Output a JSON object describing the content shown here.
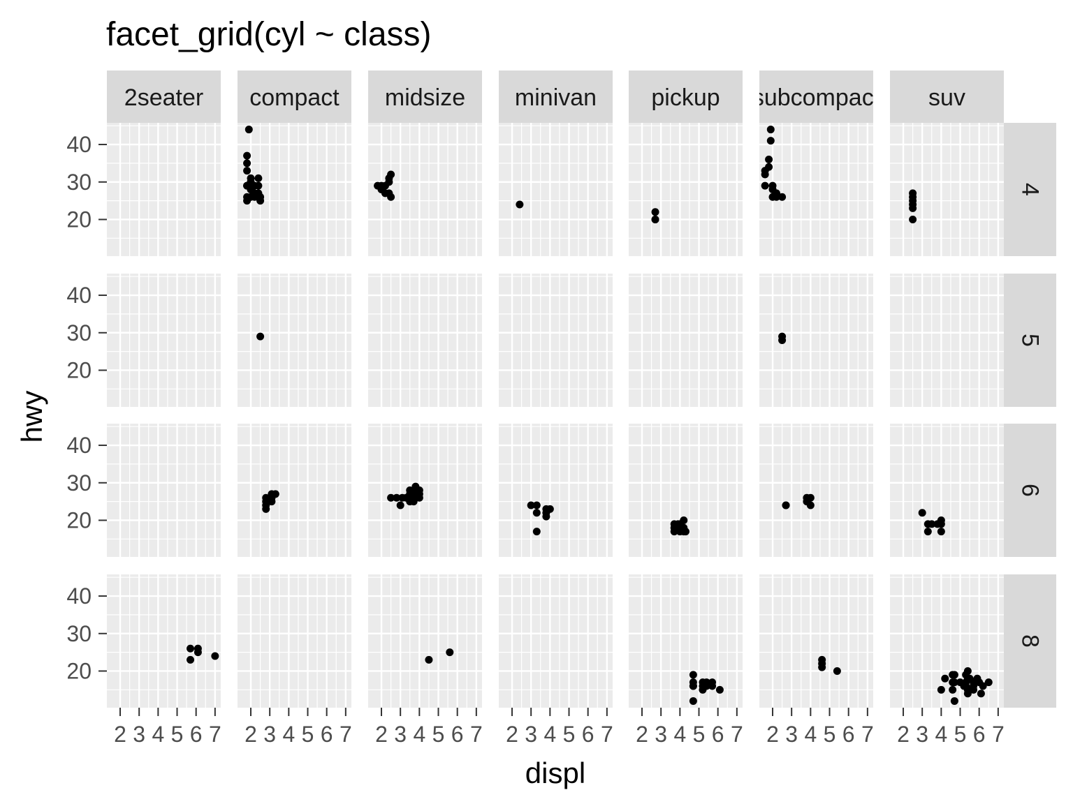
{
  "chart_data": {
    "type": "scatter",
    "title": "facet_grid(cyl ~ class)",
    "xlabel": "displ",
    "ylabel": "hwy",
    "xlim": [
      1.6,
      7.0
    ],
    "ylim": [
      12,
      44
    ],
    "x_ticks": [
      2,
      3,
      4,
      5,
      6,
      7
    ],
    "y_ticks": [
      20,
      30,
      40
    ],
    "grid": true,
    "col_facets": [
      "2seater",
      "compact",
      "midsize",
      "minivan",
      "pickup",
      "subcompact",
      "suv"
    ],
    "row_facets": [
      "4",
      "5",
      "6",
      "8"
    ],
    "colors": {
      "panel_bg": "#ebebeb",
      "grid": "#ffffff",
      "strip_bg": "#d9d9d9",
      "point": "#000000",
      "tick": "#333333"
    },
    "panels": [
      {
        "row": "4",
        "col": "compact",
        "points": [
          [
            1.8,
            29
          ],
          [
            1.8,
            29
          ],
          [
            2.0,
            31
          ],
          [
            2.0,
            30
          ],
          [
            1.8,
            26
          ],
          [
            1.8,
            25
          ],
          [
            2.0,
            28
          ],
          [
            2.0,
            28
          ],
          [
            1.8,
            33
          ],
          [
            1.8,
            35
          ],
          [
            1.8,
            37
          ],
          [
            1.9,
            44
          ],
          [
            2.0,
            29
          ],
          [
            2.0,
            26
          ],
          [
            2.0,
            29
          ],
          [
            2.2,
            27
          ],
          [
            2.2,
            29
          ],
          [
            2.4,
            31
          ],
          [
            2.4,
            27
          ],
          [
            2.5,
            25
          ],
          [
            2.5,
            26
          ],
          [
            2.2,
            26
          ],
          [
            2.4,
            29
          ],
          [
            1.9,
            29
          ],
          [
            2.0,
            30
          ]
        ]
      },
      {
        "row": "4",
        "col": "midsize",
        "points": [
          [
            1.8,
            29
          ],
          [
            2.0,
            29
          ],
          [
            2.0,
            28
          ],
          [
            2.4,
            30
          ],
          [
            2.4,
            31
          ],
          [
            2.5,
            32
          ],
          [
            2.2,
            27
          ],
          [
            2.5,
            26
          ],
          [
            2.4,
            27
          ],
          [
            2.2,
            29
          ]
        ]
      },
      {
        "row": "4",
        "col": "minivan",
        "points": [
          [
            2.4,
            24
          ]
        ]
      },
      {
        "row": "4",
        "col": "pickup",
        "points": [
          [
            2.7,
            20
          ],
          [
            2.7,
            22
          ],
          [
            2.7,
            20
          ]
        ]
      },
      {
        "row": "4",
        "col": "subcompact",
        "points": [
          [
            1.6,
            29
          ],
          [
            1.6,
            32
          ],
          [
            1.6,
            33
          ],
          [
            1.8,
            34
          ],
          [
            1.8,
            36
          ],
          [
            1.9,
            44
          ],
          [
            1.9,
            41
          ],
          [
            2.0,
            29
          ],
          [
            2.0,
            26
          ],
          [
            2.2,
            26
          ],
          [
            2.5,
            26
          ],
          [
            2.0,
            28
          ],
          [
            2.2,
            27
          ]
        ]
      },
      {
        "row": "4",
        "col": "suv",
        "points": [
          [
            2.5,
            20
          ],
          [
            2.5,
            23
          ],
          [
            2.5,
            24
          ],
          [
            2.5,
            25
          ],
          [
            2.5,
            26
          ],
          [
            2.5,
            27
          ]
        ]
      },
      {
        "row": "5",
        "col": "compact",
        "points": [
          [
            2.5,
            29
          ]
        ]
      },
      {
        "row": "5",
        "col": "subcompact",
        "points": [
          [
            2.5,
            28
          ],
          [
            2.5,
            29
          ]
        ]
      },
      {
        "row": "6",
        "col": "compact",
        "points": [
          [
            2.8,
            23
          ],
          [
            2.8,
            24
          ],
          [
            2.8,
            25
          ],
          [
            2.8,
            26
          ],
          [
            3.1,
            25
          ],
          [
            3.1,
            26
          ],
          [
            3.3,
            27
          ],
          [
            3.1,
            27
          ]
        ]
      },
      {
        "row": "6",
        "col": "midsize",
        "points": [
          [
            2.5,
            26
          ],
          [
            2.8,
            26
          ],
          [
            3.0,
            24
          ],
          [
            3.1,
            26
          ],
          [
            3.3,
            26
          ],
          [
            3.5,
            25
          ],
          [
            3.5,
            26
          ],
          [
            3.5,
            27
          ],
          [
            3.5,
            28
          ],
          [
            3.8,
            26
          ],
          [
            3.8,
            27
          ],
          [
            3.8,
            28
          ],
          [
            3.8,
            29
          ],
          [
            4.0,
            26
          ],
          [
            4.0,
            27
          ],
          [
            4.0,
            28
          ],
          [
            3.7,
            25
          ]
        ]
      },
      {
        "row": "6",
        "col": "minivan",
        "points": [
          [
            3.0,
            24
          ],
          [
            3.3,
            24
          ],
          [
            3.3,
            22
          ],
          [
            3.3,
            17
          ],
          [
            3.8,
            23
          ],
          [
            3.8,
            22
          ],
          [
            3.8,
            21
          ],
          [
            4.0,
            23
          ]
        ]
      },
      {
        "row": "6",
        "col": "pickup",
        "points": [
          [
            3.7,
            17
          ],
          [
            3.7,
            18
          ],
          [
            3.7,
            19
          ],
          [
            3.9,
            19
          ],
          [
            4.0,
            17
          ],
          [
            4.0,
            18
          ],
          [
            4.0,
            19
          ],
          [
            4.2,
            18
          ],
          [
            4.2,
            20
          ],
          [
            4.2,
            17
          ],
          [
            4.3,
            17
          ],
          [
            3.8,
            18
          ]
        ]
      },
      {
        "row": "6",
        "col": "subcompact",
        "points": [
          [
            2.7,
            24
          ],
          [
            2.7,
            24
          ],
          [
            3.8,
            25
          ],
          [
            3.8,
            26
          ],
          [
            4.0,
            24
          ],
          [
            4.0,
            26
          ]
        ]
      },
      {
        "row": "6",
        "col": "suv",
        "points": [
          [
            3.0,
            22
          ],
          [
            3.3,
            19
          ],
          [
            3.3,
            17
          ],
          [
            3.5,
            19
          ],
          [
            3.8,
            19
          ],
          [
            4.0,
            20
          ],
          [
            4.0,
            19
          ],
          [
            4.0,
            17
          ]
        ]
      },
      {
        "row": "8",
        "col": "2seater",
        "points": [
          [
            5.7,
            26
          ],
          [
            5.7,
            23
          ],
          [
            6.1,
            25
          ],
          [
            6.1,
            26
          ],
          [
            7.0,
            24
          ]
        ]
      },
      {
        "row": "8",
        "col": "midsize",
        "points": [
          [
            4.5,
            23
          ],
          [
            5.6,
            25
          ]
        ]
      },
      {
        "row": "8",
        "col": "pickup",
        "points": [
          [
            4.7,
            12
          ],
          [
            4.7,
            16
          ],
          [
            4.7,
            17
          ],
          [
            4.7,
            19
          ],
          [
            5.2,
            15
          ],
          [
            5.2,
            16
          ],
          [
            5.2,
            17
          ],
          [
            5.4,
            16
          ],
          [
            5.4,
            17
          ],
          [
            5.7,
            17
          ],
          [
            5.7,
            16
          ],
          [
            6.1,
            15
          ],
          [
            4.7,
            16
          ]
        ]
      },
      {
        "row": "8",
        "col": "subcompact",
        "points": [
          [
            4.6,
            21
          ],
          [
            4.6,
            22
          ],
          [
            4.6,
            23
          ],
          [
            5.4,
            20
          ]
        ]
      },
      {
        "row": "8",
        "col": "suv",
        "points": [
          [
            4.0,
            15
          ],
          [
            4.2,
            18
          ],
          [
            4.6,
            15
          ],
          [
            4.6,
            17
          ],
          [
            4.6,
            19
          ],
          [
            4.7,
            12
          ],
          [
            4.7,
            17
          ],
          [
            4.7,
            19
          ],
          [
            5.0,
            17
          ],
          [
            5.2,
            16
          ],
          [
            5.3,
            17
          ],
          [
            5.3,
            16
          ],
          [
            5.4,
            14
          ],
          [
            5.4,
            15
          ],
          [
            5.4,
            18
          ],
          [
            5.4,
            20
          ],
          [
            5.7,
            15
          ],
          [
            5.7,
            16
          ],
          [
            5.7,
            17
          ],
          [
            5.9,
            18
          ],
          [
            6.0,
            17
          ],
          [
            6.1,
            14
          ],
          [
            6.2,
            16
          ],
          [
            6.5,
            17
          ],
          [
            5.5,
            18
          ],
          [
            5.3,
            19
          ]
        ]
      }
    ]
  }
}
